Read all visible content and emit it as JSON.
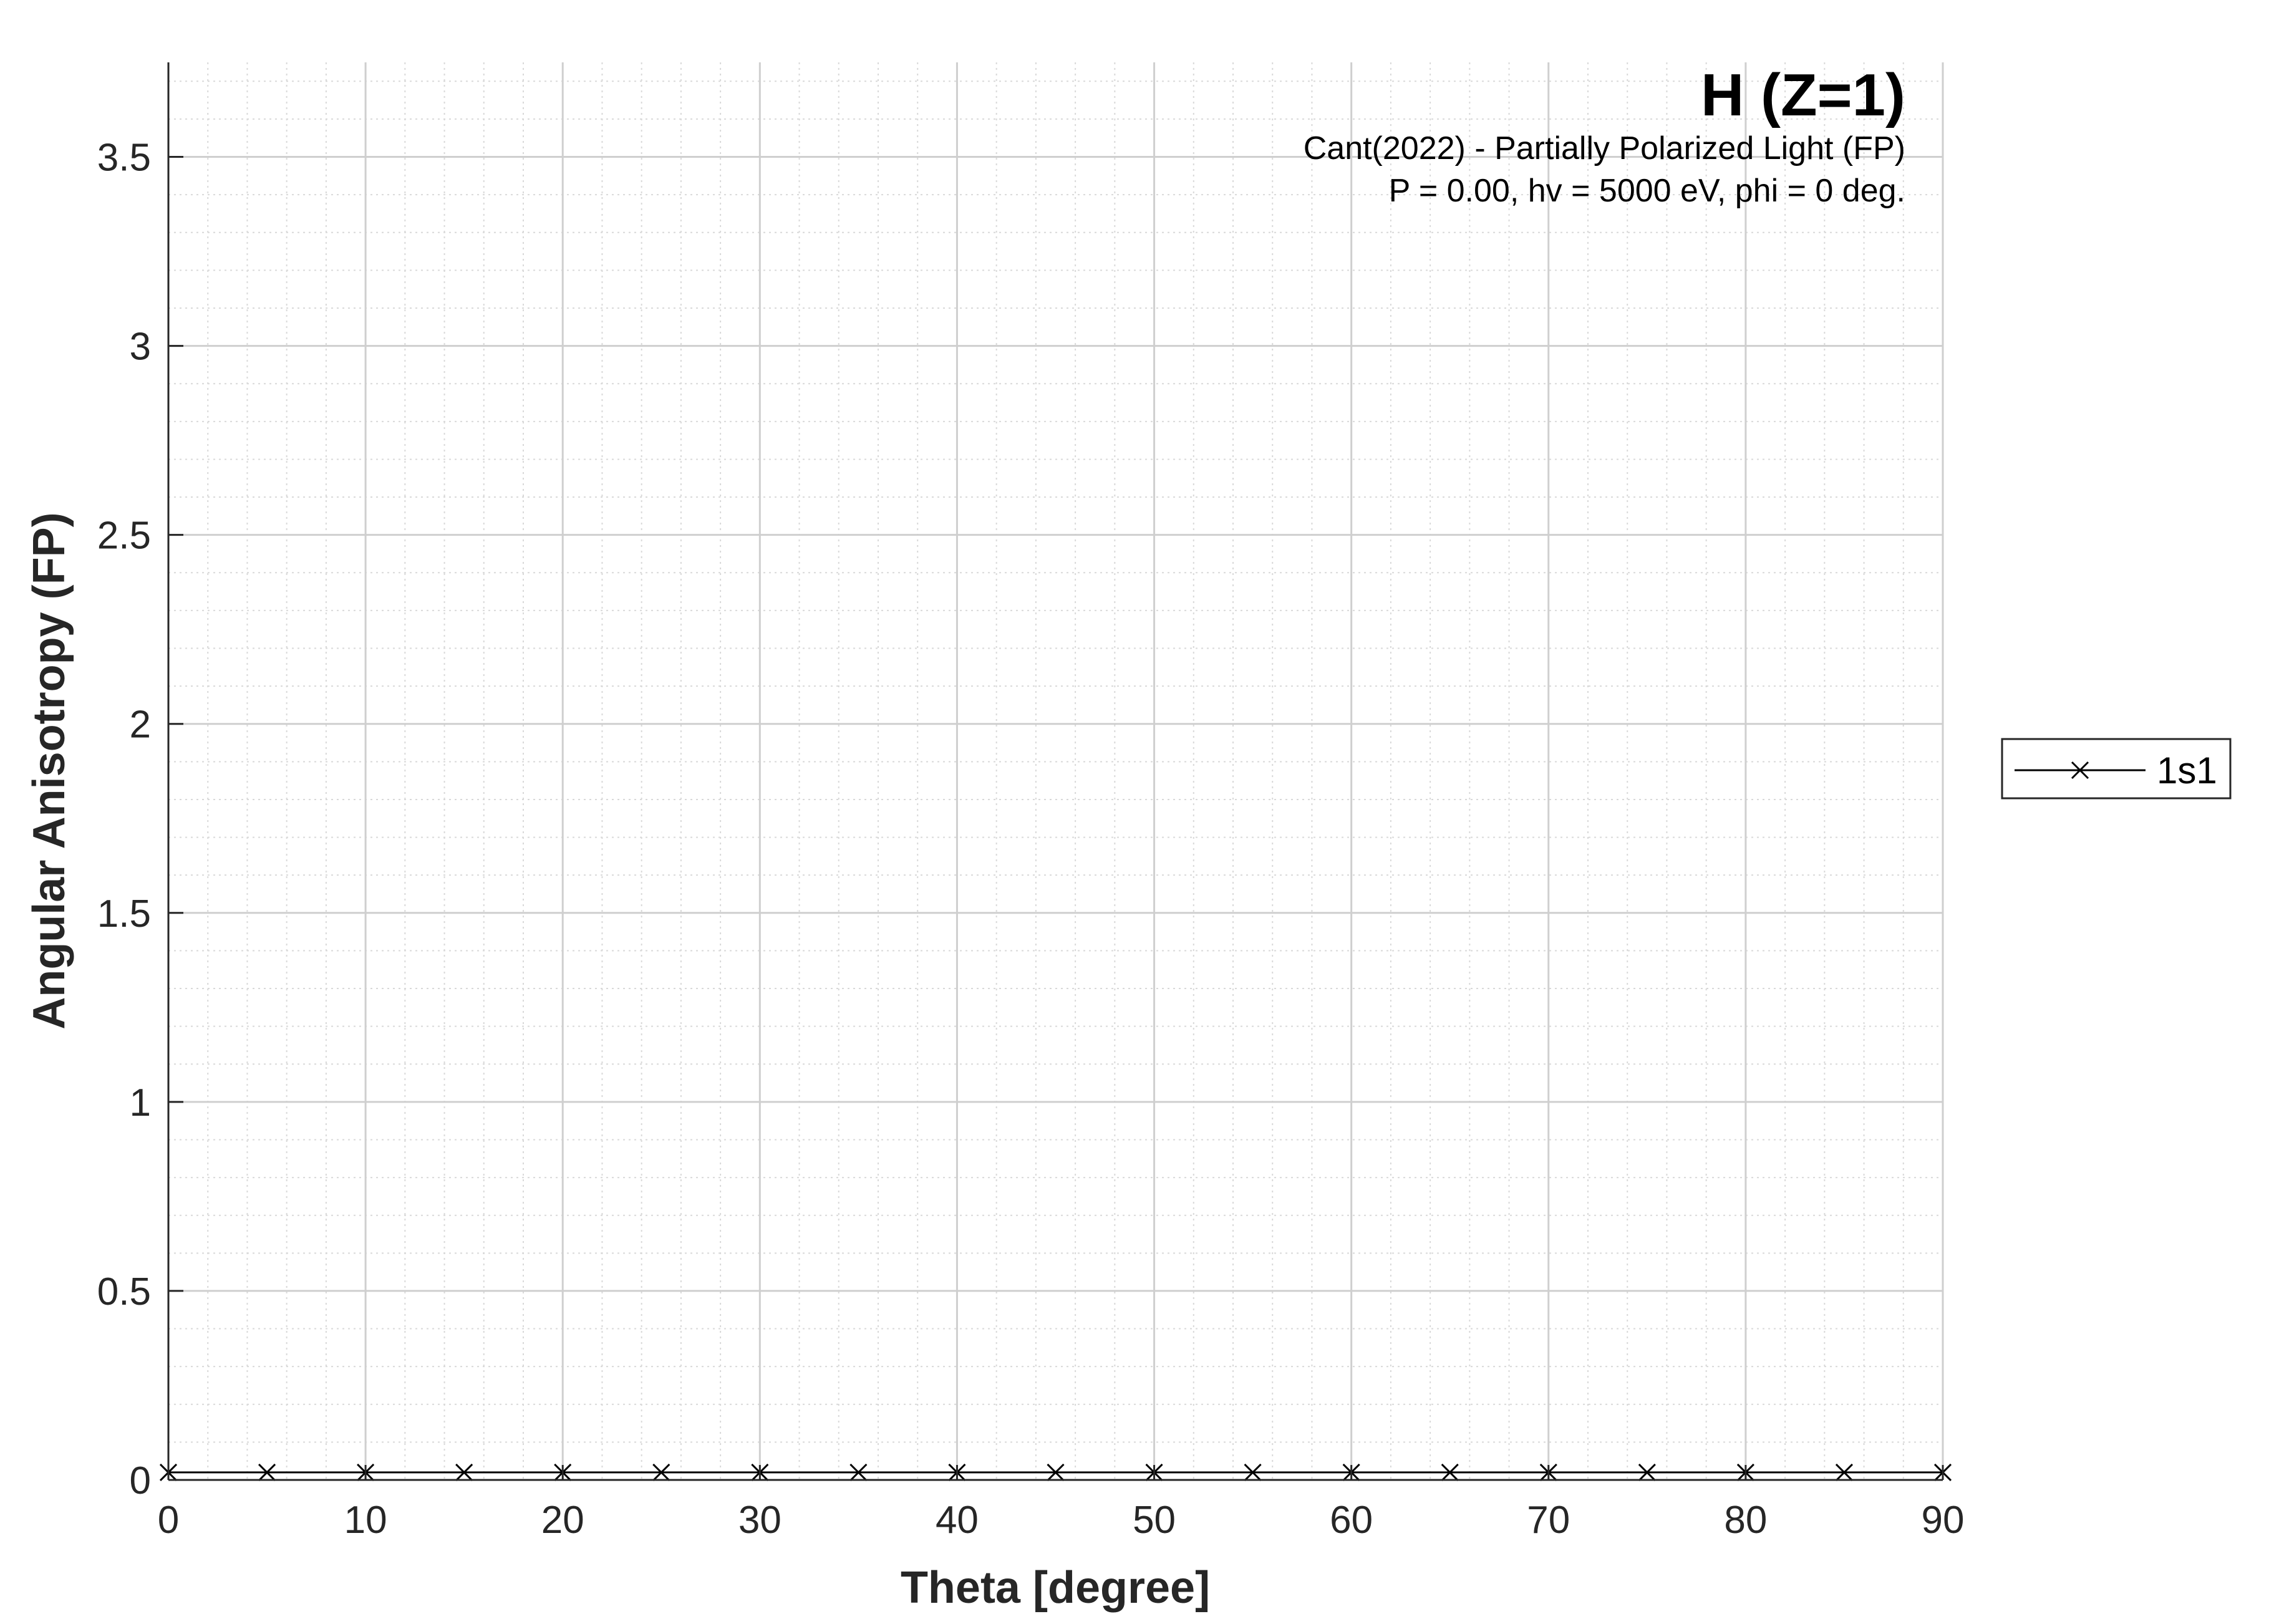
{
  "chart_data": {
    "type": "line",
    "title": "H (Z=1)",
    "subtitle_lines": [
      "Cant(2022) - Partially Polarized Light (FP)",
      "P = 0.00, hv = 5000 eV, phi = 0 deg."
    ],
    "xlabel": "Theta [degree]",
    "ylabel": "Angular Anisotropy (FP)",
    "xlim": [
      0,
      90
    ],
    "ylim": [
      0,
      3.75
    ],
    "x_ticks": [
      0,
      10,
      20,
      30,
      40,
      50,
      60,
      70,
      80,
      90
    ],
    "x_tick_labels": [
      "0",
      "10",
      "20",
      "30",
      "40",
      "50",
      "60",
      "70",
      "80",
      "90"
    ],
    "y_ticks": [
      0,
      0.5,
      1,
      1.5,
      2,
      2.5,
      3,
      3.5
    ],
    "y_tick_labels": [
      "0",
      "0.5",
      "1",
      "1.5",
      "2",
      "2.5",
      "3",
      "3.5"
    ],
    "grid": true,
    "minor_grid": true,
    "legend_position": "outside-right",
    "x": [
      0,
      5,
      10,
      15,
      20,
      25,
      30,
      35,
      40,
      45,
      50,
      55,
      60,
      65,
      70,
      75,
      80,
      85,
      90
    ],
    "series": [
      {
        "name": "1s1",
        "marker": "x",
        "color": "#000000",
        "values": [
          0.02,
          0.02,
          0.02,
          0.02,
          0.02,
          0.02,
          0.02,
          0.02,
          0.02,
          0.02,
          0.02,
          0.02,
          0.02,
          0.02,
          0.02,
          0.02,
          0.02,
          0.02,
          0.02
        ]
      }
    ]
  }
}
